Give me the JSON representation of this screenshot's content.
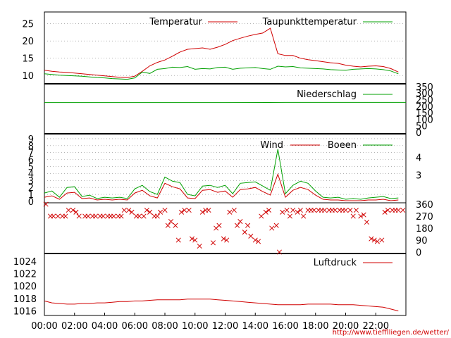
{
  "source_url": "http://www.tiefflliegen.de/wetter/",
  "colors": {
    "red": "#d00000",
    "green": "#00a000",
    "grid": "#888888",
    "frame": "#000000"
  },
  "chart_data": [
    {
      "type": "line",
      "x": [
        "00:00",
        "00:30",
        "01:00",
        "01:30",
        "02:00",
        "02:30",
        "03:00",
        "03:30",
        "04:00",
        "04:30",
        "05:00",
        "05:30",
        "06:00",
        "06:30",
        "07:00",
        "07:30",
        "08:00",
        "08:30",
        "09:00",
        "09:30",
        "10:00",
        "10:30",
        "11:00",
        "11:30",
        "12:00",
        "12:30",
        "13:00",
        "13:30",
        "14:00",
        "14:30",
        "15:00",
        "15:30",
        "16:00",
        "16:30",
        "17:00",
        "17:30",
        "18:00",
        "18:30",
        "19:00",
        "19:30",
        "20:00",
        "20:30",
        "21:00",
        "21:30",
        "22:00",
        "22:30",
        "23:00",
        "23:30"
      ],
      "series": [
        {
          "name": "Temperatur",
          "color": "#d00000",
          "values": [
            11.5,
            11.2,
            11.0,
            10.9,
            10.7,
            10.5,
            10.3,
            10.1,
            9.9,
            9.7,
            9.5,
            9.4,
            9.8,
            11.2,
            12.8,
            13.8,
            14.5,
            15.6,
            16.8,
            17.6,
            17.8,
            18.0,
            17.6,
            18.2,
            19.0,
            20.1,
            20.8,
            21.4,
            21.9,
            22.3,
            23.7,
            16.3,
            15.8,
            15.8,
            15.0,
            14.6,
            14.3,
            14.0,
            13.7,
            13.5,
            13.0,
            12.7,
            12.5,
            12.7,
            12.8,
            12.6,
            12.0,
            11.0
          ]
        },
        {
          "name": "Taupunkttemperatur",
          "color": "#00a000",
          "values": [
            10.5,
            10.3,
            10.1,
            10.0,
            9.9,
            9.8,
            9.6,
            9.4,
            9.3,
            9.1,
            9.0,
            8.9,
            9.3,
            11.0,
            10.6,
            11.8,
            12.0,
            12.4,
            12.3,
            12.6,
            11.8,
            12.0,
            11.9,
            12.3,
            12.4,
            11.8,
            12.1,
            12.2,
            12.3,
            12.0,
            11.8,
            12.7,
            12.5,
            12.6,
            12.2,
            12.1,
            12.0,
            11.9,
            11.7,
            11.6,
            11.5,
            11.8,
            11.9,
            12.0,
            11.9,
            11.7,
            11.3,
            10.5
          ]
        }
      ],
      "ylim": [
        8,
        28
      ],
      "yticks": [
        "10",
        "15",
        "20",
        "25"
      ]
    },
    {
      "type": "line",
      "x": [
        "00:00",
        "12:00",
        "16:00",
        "24:00"
      ],
      "series": [
        {
          "name": "Niederschlag",
          "color": "#00a000",
          "values": [
            228,
            228,
            229,
            229
          ]
        }
      ],
      "ylim": [
        0,
        360
      ],
      "yticks": [
        "0",
        "50",
        "100",
        "150",
        "200",
        "250",
        "300",
        "350"
      ]
    },
    {
      "type": "line",
      "x": [
        "00:00",
        "00:30",
        "01:00",
        "01:30",
        "02:00",
        "02:30",
        "03:00",
        "03:30",
        "04:00",
        "04:30",
        "05:00",
        "05:30",
        "06:00",
        "06:30",
        "07:00",
        "07:30",
        "08:00",
        "08:30",
        "09:00",
        "09:30",
        "10:00",
        "10:30",
        "11:00",
        "11:30",
        "12:00",
        "12:30",
        "13:00",
        "13:30",
        "14:00",
        "14:30",
        "15:00",
        "15:30",
        "16:00",
        "16:30",
        "17:00",
        "17:30",
        "18:00",
        "18:30",
        "19:00",
        "19:30",
        "20:00",
        "20:30",
        "21:00",
        "21:30",
        "22:00",
        "22:30",
        "23:00",
        "23:30"
      ],
      "series": [
        {
          "name": "Wind",
          "color": "#d00000",
          "values": [
            0.6,
            0.8,
            0.3,
            1.2,
            1.3,
            0.4,
            0.5,
            0.2,
            0.3,
            0.2,
            0.3,
            0.2,
            1.2,
            1.6,
            0.8,
            0.5,
            2.6,
            2.1,
            1.8,
            0.5,
            0.4,
            1.6,
            1.7,
            1.3,
            1.5,
            0.6,
            1.7,
            1.8,
            2.0,
            1.4,
            0.9,
            3.9,
            0.6,
            1.6,
            2.0,
            1.7,
            0.9,
            0.3,
            0.2,
            0.2,
            0.1,
            0.1,
            0.1,
            0.2,
            0.2,
            0.3,
            0.1,
            0.2
          ]
        },
        {
          "name": "Boeen",
          "color": "#00a000",
          "values": [
            1.2,
            1.5,
            0.6,
            2.0,
            2.1,
            0.7,
            0.9,
            0.4,
            0.6,
            0.5,
            0.6,
            0.4,
            1.8,
            2.3,
            1.4,
            1.0,
            3.5,
            2.9,
            2.7,
            1.0,
            0.8,
            2.2,
            2.3,
            2.0,
            2.3,
            1.1,
            2.6,
            2.7,
            2.8,
            2.2,
            1.6,
            7.5,
            1.1,
            2.3,
            2.9,
            2.6,
            1.5,
            0.6,
            0.5,
            0.6,
            0.3,
            0.4,
            0.3,
            0.5,
            0.6,
            0.7,
            0.4,
            0.5
          ]
        }
      ],
      "ylim": [
        0,
        9.5
      ],
      "yticks": [
        "0",
        "1",
        "2",
        "3",
        "4",
        "5",
        "6",
        "7",
        "8",
        "9"
      ],
      "y2ticks_beaufort": [
        "3",
        "4"
      ],
      "ylabel": ""
    },
    {
      "type": "scatter",
      "name": "Windrichtung",
      "color": "#d00000",
      "ylim": [
        0,
        360
      ],
      "yticks": [
        "0",
        "90",
        "180",
        "270",
        "360"
      ],
      "points_hours": [
        0.1,
        0.4,
        0.6,
        0.9,
        1.2,
        1.4,
        1.6,
        1.9,
        2.1,
        2.3,
        2.7,
        2.9,
        3.2,
        3.4,
        3.7,
        3.9,
        4.2,
        4.4,
        4.6,
        4.9,
        5.1,
        5.3,
        5.6,
        5.8,
        6.1,
        6.3,
        6.6,
        6.8,
        7.0,
        7.3,
        7.5,
        7.7,
        8.0,
        8.2,
        8.4,
        8.7,
        8.9,
        9.1,
        9.3,
        9.6,
        9.8,
        10.0,
        10.3,
        10.5,
        10.7,
        10.9,
        11.2,
        11.4,
        11.6,
        11.9,
        12.1,
        12.3,
        12.6,
        12.8,
        13.0,
        13.3,
        13.5,
        13.7,
        14.0,
        14.2,
        14.4,
        14.7,
        14.9,
        15.1,
        15.4,
        15.6,
        15.8,
        16.1,
        16.3,
        16.5,
        16.8,
        17.0,
        17.2,
        17.5,
        17.7,
        17.9,
        18.2,
        18.4,
        18.6,
        18.9,
        19.1,
        19.3,
        19.6,
        19.8,
        20.0,
        20.3,
        20.5,
        20.7,
        21.0,
        21.2,
        21.4,
        21.7,
        21.9,
        22.1,
        22.4,
        22.6,
        22.8,
        23.1,
        23.3,
        23.5,
        23.8
      ],
      "points_deg": [
        360,
        270,
        270,
        270,
        270,
        270,
        315,
        315,
        300,
        270,
        270,
        270,
        270,
        270,
        270,
        270,
        270,
        270,
        270,
        270,
        270,
        315,
        315,
        300,
        270,
        270,
        270,
        315,
        300,
        270,
        270,
        300,
        315,
        200,
        230,
        200,
        90,
        300,
        315,
        315,
        100,
        90,
        45,
        300,
        315,
        315,
        70,
        180,
        200,
        100,
        90,
        300,
        315,
        200,
        230,
        150,
        200,
        120,
        90,
        80,
        270,
        300,
        315,
        180,
        200,
        0,
        300,
        315,
        270,
        315,
        300,
        315,
        270,
        315,
        315,
        315,
        315,
        315,
        315,
        315,
        315,
        315,
        315,
        315,
        315,
        315,
        270,
        315,
        270,
        280,
        225,
        100,
        90,
        80,
        90,
        300,
        315,
        315,
        315,
        315,
        315
      ]
    },
    {
      "type": "line",
      "x": [
        "00:00",
        "00:30",
        "01:00",
        "01:30",
        "02:00",
        "02:30",
        "03:00",
        "03:30",
        "04:00",
        "04:30",
        "05:00",
        "05:30",
        "06:00",
        "06:30",
        "07:00",
        "07:30",
        "08:00",
        "08:30",
        "09:00",
        "09:30",
        "10:00",
        "10:30",
        "11:00",
        "11:30",
        "12:00",
        "12:30",
        "13:00",
        "13:30",
        "14:00",
        "14:30",
        "15:00",
        "15:30",
        "16:00",
        "16:30",
        "17:00",
        "17:30",
        "18:00",
        "18:30",
        "19:00",
        "19:30",
        "20:00",
        "20:30",
        "21:00",
        "21:30",
        "22:00",
        "22:30",
        "23:00",
        "23:30"
      ],
      "series": [
        {
          "name": "Luftdruck",
          "color": "#d00000",
          "values": [
            1017.6,
            1017.3,
            1017.2,
            1017.1,
            1017.1,
            1017.2,
            1017.2,
            1017.3,
            1017.3,
            1017.4,
            1017.5,
            1017.5,
            1017.6,
            1017.6,
            1017.7,
            1017.8,
            1017.8,
            1017.8,
            1017.8,
            1017.9,
            1017.9,
            1017.9,
            1017.9,
            1017.8,
            1017.7,
            1017.6,
            1017.5,
            1017.4,
            1017.3,
            1017.2,
            1017.1,
            1017.0,
            1017.0,
            1017.0,
            1017.0,
            1017.1,
            1017.1,
            1017.1,
            1017.1,
            1017.0,
            1017.0,
            1017.0,
            1016.9,
            1016.8,
            1016.7,
            1016.6,
            1016.3,
            1016.0
          ]
        }
      ],
      "ylim": [
        1015.5,
        1025
      ],
      "yticks": [
        "1016",
        "1018",
        "1020",
        "1022",
        "1024"
      ]
    }
  ],
  "x_axis": {
    "ticks": [
      "00:00",
      "02:00",
      "04:00",
      "06:00",
      "08:00",
      "10:00",
      "12:00",
      "14:00",
      "16:00",
      "18:00",
      "20:00",
      "22:00"
    ]
  }
}
